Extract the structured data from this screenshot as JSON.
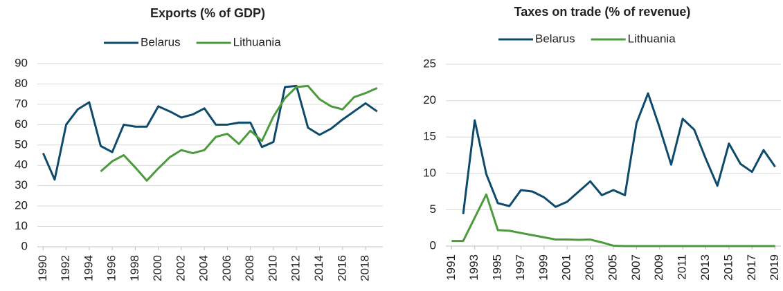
{
  "chart_data": [
    {
      "type": "line",
      "title": "Exports (% of GDP)",
      "x": [
        1990,
        1991,
        1992,
        1993,
        1994,
        1995,
        1996,
        1997,
        1998,
        1999,
        2000,
        2001,
        2002,
        2003,
        2004,
        2005,
        2006,
        2007,
        2008,
        2009,
        2010,
        2011,
        2012,
        2013,
        2014,
        2015,
        2016,
        2017,
        2018,
        2019
      ],
      "series": [
        {
          "name": "Belarus",
          "color": "#0e4a6b",
          "values": [
            46,
            33,
            60,
            67.5,
            71,
            49.5,
            46.5,
            60,
            59,
            59,
            69,
            66.5,
            63.5,
            65,
            68,
            60,
            60,
            61,
            61,
            49,
            51.5,
            78.5,
            79,
            58.5,
            55,
            58,
            62.5,
            66.5,
            70.5,
            66.5
          ]
        },
        {
          "name": "Lithuania",
          "color": "#4b9a3b",
          "values": [
            null,
            null,
            null,
            null,
            null,
            37,
            42,
            45,
            39,
            32.5,
            38.5,
            44,
            47.5,
            46,
            47.5,
            54,
            55.5,
            50.5,
            57,
            52,
            64,
            73,
            78.5,
            79,
            72.5,
            69,
            67.5,
            73.5,
            75.5,
            78
          ]
        }
      ],
      "xlim": [
        1989.5,
        2019.5
      ],
      "xticks": [
        1990,
        1992,
        1994,
        1996,
        1998,
        2000,
        2002,
        2004,
        2006,
        2008,
        2010,
        2012,
        2014,
        2016,
        2018
      ],
      "ylim": [
        0,
        90
      ],
      "yticks": [
        0,
        10,
        20,
        30,
        40,
        50,
        60,
        70,
        80,
        90
      ],
      "grid": true,
      "legend": "top"
    },
    {
      "type": "line",
      "title": "Taxes on trade (% of revenue)",
      "x": [
        1991,
        1992,
        1993,
        1994,
        1995,
        1996,
        1997,
        1998,
        1999,
        2000,
        2001,
        2002,
        2003,
        2004,
        2005,
        2006,
        2007,
        2008,
        2009,
        2010,
        2011,
        2012,
        2013,
        2014,
        2015,
        2016,
        2017,
        2018,
        2019
      ],
      "series": [
        {
          "name": "Belarus",
          "color": "#0e4a6b",
          "values": [
            null,
            4.4,
            17.3,
            9.9,
            5.9,
            5.5,
            7.7,
            7.5,
            6.7,
            5.4,
            6.1,
            7.5,
            8.9,
            7.0,
            7.7,
            7.0,
            16.9,
            21.0,
            16.3,
            11.2,
            17.5,
            16.0,
            12.0,
            8.3,
            14.1,
            11.3,
            10.2,
            13.2,
            10.9
          ]
        },
        {
          "name": "Lithuania",
          "color": "#4b9a3b",
          "values": [
            0.7,
            0.7,
            3.9,
            7.1,
            2.2,
            2.1,
            1.8,
            1.5,
            1.2,
            0.9,
            0.9,
            0.85,
            0.9,
            0.5,
            0.05,
            0,
            0,
            0,
            0,
            0,
            0,
            0,
            0,
            0,
            0,
            0,
            0,
            0,
            0
          ]
        }
      ],
      "xlim": [
        1990.5,
        2019.5
      ],
      "xticks": [
        1991,
        1993,
        1995,
        1997,
        1999,
        2001,
        2003,
        2005,
        2007,
        2009,
        2011,
        2013,
        2015,
        2017,
        2019
      ],
      "ylim": [
        0,
        25
      ],
      "yticks": [
        0,
        5,
        10,
        15,
        20,
        25
      ],
      "grid": true,
      "legend": "top"
    }
  ]
}
